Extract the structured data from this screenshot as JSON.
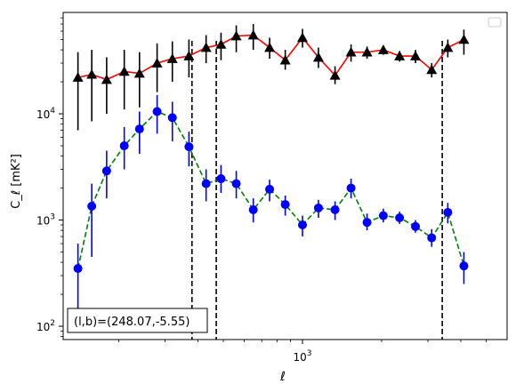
{
  "chart_data": {
    "type": "scatter",
    "xscale": "log",
    "yscale": "log",
    "xlim": [
      123,
      6000
    ],
    "ylim": [
      75,
      90000
    ],
    "xlabel": "ℓ",
    "ylabel": "C_ℓ  [mK²]",
    "xticklabels": [
      {
        "value": 1000,
        "base": "10",
        "exp": "3"
      }
    ],
    "yticklabels": [
      {
        "value": 100,
        "base": "10",
        "exp": "2"
      },
      {
        "value": 1000,
        "base": "10",
        "exp": "3"
      },
      {
        "value": 10000,
        "base": "10",
        "exp": "4"
      }
    ],
    "legend": {
      "placement": "top-right",
      "entries": []
    },
    "annotation": "(l,b)=(248.07,-5.55)",
    "vlines": [
      380,
      470,
      3400
    ],
    "series": [
      {
        "marker": "triangle",
        "color": "#000000",
        "line_color": "#ff0000",
        "line_style": "solid",
        "points": [
          {
            "x": 140,
            "y": 22000,
            "lo": 7000,
            "hi": 38000
          },
          {
            "x": 158,
            "y": 23500,
            "lo": 8500,
            "hi": 40000
          },
          {
            "x": 180,
            "y": 21000,
            "lo": 10000,
            "hi": 34000
          },
          {
            "x": 210,
            "y": 25000,
            "lo": 11000,
            "hi": 40000
          },
          {
            "x": 240,
            "y": 24000,
            "lo": 11500,
            "hi": 38000
          },
          {
            "x": 280,
            "y": 30000,
            "lo": 16000,
            "hi": 46000
          },
          {
            "x": 320,
            "y": 33000,
            "lo": 20000,
            "hi": 48000
          },
          {
            "x": 370,
            "y": 35000,
            "lo": 22000,
            "hi": 50000
          },
          {
            "x": 430,
            "y": 42000,
            "lo": 30000,
            "hi": 55000
          },
          {
            "x": 490,
            "y": 45000,
            "lo": 32000,
            "hi": 58000
          },
          {
            "x": 560,
            "y": 54000,
            "lo": 38000,
            "hi": 68000
          },
          {
            "x": 650,
            "y": 55000,
            "lo": 40000,
            "hi": 70000
          },
          {
            "x": 750,
            "y": 42000,
            "lo": 33000,
            "hi": 52000
          },
          {
            "x": 860,
            "y": 32000,
            "lo": 26000,
            "hi": 40000
          },
          {
            "x": 1000,
            "y": 52000,
            "lo": 42000,
            "hi": 63000
          },
          {
            "x": 1150,
            "y": 34000,
            "lo": 27000,
            "hi": 42000
          },
          {
            "x": 1330,
            "y": 23000,
            "lo": 19000,
            "hi": 28000
          },
          {
            "x": 1530,
            "y": 38000,
            "lo": 31000,
            "hi": 45000
          },
          {
            "x": 1760,
            "y": 38000,
            "lo": 33000,
            "hi": 43000
          },
          {
            "x": 2030,
            "y": 40000,
            "lo": 36000,
            "hi": 44000
          },
          {
            "x": 2340,
            "y": 35000,
            "lo": 31000,
            "hi": 39000
          },
          {
            "x": 2690,
            "y": 35000,
            "lo": 30000,
            "hi": 40000
          },
          {
            "x": 3100,
            "y": 26000,
            "lo": 22000,
            "hi": 30000
          },
          {
            "x": 3570,
            "y": 42000,
            "lo": 34000,
            "hi": 50000
          },
          {
            "x": 4110,
            "y": 50000,
            "lo": 36000,
            "hi": 62000
          }
        ]
      },
      {
        "marker": "circle",
        "color": "#0000ff",
        "line_color": "#008000",
        "line_style": "dashed",
        "points": [
          {
            "x": 140,
            "y": 350,
            "lo": 120,
            "hi": 600
          },
          {
            "x": 158,
            "y": 1350,
            "lo": 450,
            "hi": 2200
          },
          {
            "x": 180,
            "y": 2900,
            "lo": 1600,
            "hi": 4500
          },
          {
            "x": 210,
            "y": 5000,
            "lo": 3000,
            "hi": 7500
          },
          {
            "x": 240,
            "y": 7200,
            "lo": 4200,
            "hi": 10500
          },
          {
            "x": 280,
            "y": 10500,
            "lo": 6500,
            "hi": 15000
          },
          {
            "x": 320,
            "y": 9200,
            "lo": 5500,
            "hi": 13000
          },
          {
            "x": 370,
            "y": 4900,
            "lo": 3200,
            "hi": 6800
          },
          {
            "x": 430,
            "y": 2200,
            "lo": 1500,
            "hi": 3000
          },
          {
            "x": 490,
            "y": 2450,
            "lo": 1800,
            "hi": 3300
          },
          {
            "x": 560,
            "y": 2200,
            "lo": 1600,
            "hi": 2900
          },
          {
            "x": 650,
            "y": 1250,
            "lo": 950,
            "hi": 1600
          },
          {
            "x": 750,
            "y": 1950,
            "lo": 1500,
            "hi": 2400
          },
          {
            "x": 860,
            "y": 1400,
            "lo": 1100,
            "hi": 1700
          },
          {
            "x": 1000,
            "y": 900,
            "lo": 700,
            "hi": 1100
          },
          {
            "x": 1150,
            "y": 1300,
            "lo": 1050,
            "hi": 1550
          },
          {
            "x": 1330,
            "y": 1250,
            "lo": 1000,
            "hi": 1500
          },
          {
            "x": 1530,
            "y": 2000,
            "lo": 1600,
            "hi": 2450
          },
          {
            "x": 1760,
            "y": 950,
            "lo": 800,
            "hi": 1150
          },
          {
            "x": 2030,
            "y": 1100,
            "lo": 950,
            "hi": 1280
          },
          {
            "x": 2340,
            "y": 1050,
            "lo": 920,
            "hi": 1200
          },
          {
            "x": 2690,
            "y": 870,
            "lo": 760,
            "hi": 1000
          },
          {
            "x": 3100,
            "y": 680,
            "lo": 560,
            "hi": 820
          },
          {
            "x": 3570,
            "y": 1180,
            "lo": 930,
            "hi": 1450
          },
          {
            "x": 4110,
            "y": 370,
            "lo": 250,
            "hi": 500
          }
        ]
      }
    ]
  }
}
